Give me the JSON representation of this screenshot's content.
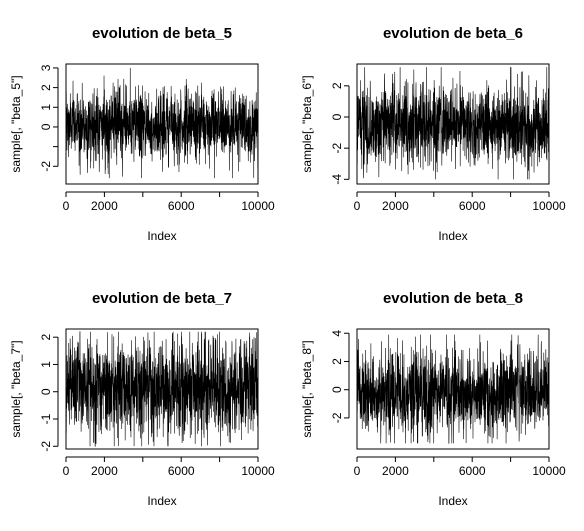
{
  "chart_data": [
    {
      "type": "line",
      "title": "evolution de beta_5",
      "xlabel": "Index",
      "ylabel": "sample[, \"beta_5\"]",
      "xlim": [
        0,
        10000
      ],
      "ylim": [
        -2.9,
        3.2
      ],
      "x_ticks": [
        0,
        2000,
        6000,
        10000
      ],
      "x_tick_labels": [
        "0",
        "2000",
        "6000",
        "10000"
      ],
      "x_minor_ticks": [
        4000,
        8000
      ],
      "y_ticks": [
        -2,
        0,
        1,
        2,
        3
      ],
      "y_tick_labels": [
        "-2",
        "0",
        "1",
        "2",
        "3"
      ],
      "y_minor_ticks": [
        -1
      ],
      "series": [
        {
          "n": 10000,
          "center": 0.1,
          "min": -2.6,
          "max": 3.0,
          "band_low": -0.9,
          "band_high": 1.3
        }
      ],
      "grid": false
    },
    {
      "type": "line",
      "title": "evolution de beta_6",
      "xlabel": "Index",
      "ylabel": "sample[, \"beta_6\"]",
      "xlim": [
        0,
        10000
      ],
      "ylim": [
        -4.3,
        3.4
      ],
      "x_ticks": [
        0,
        2000,
        6000,
        10000
      ],
      "x_tick_labels": [
        "0",
        "2000",
        "6000",
        "10000"
      ],
      "x_minor_ticks": [
        4000,
        8000
      ],
      "y_ticks": [
        -4,
        -2,
        0,
        2
      ],
      "y_tick_labels": [
        "-4",
        "-2",
        "0",
        "2"
      ],
      "y_minor_ticks": [],
      "series": [
        {
          "n": 10000,
          "center": -0.5,
          "min": -4.0,
          "max": 3.2,
          "band_low": -2.0,
          "band_high": 1.2
        }
      ],
      "grid": false
    },
    {
      "type": "line",
      "title": "evolution de beta_7",
      "xlabel": "Index",
      "ylabel": "sample[, \"beta_7\"]",
      "xlim": [
        0,
        10000
      ],
      "ylim": [
        -2.1,
        2.3
      ],
      "x_ticks": [
        0,
        2000,
        6000,
        10000
      ],
      "x_tick_labels": [
        "0",
        "2000",
        "6000",
        "10000"
      ],
      "x_minor_ticks": [
        4000,
        8000
      ],
      "y_ticks": [
        -2,
        -1,
        0,
        1,
        2
      ],
      "y_tick_labels": [
        "-2",
        "-1",
        "0",
        "1",
        "2"
      ],
      "y_minor_ticks": [],
      "series": [
        {
          "n": 10000,
          "center": 0.1,
          "min": -2.0,
          "max": 2.2,
          "band_low": -0.9,
          "band_high": 1.3
        }
      ],
      "grid": false
    },
    {
      "type": "line",
      "title": "evolution de beta_8",
      "xlabel": "Index",
      "ylabel": "sample[, \"beta_8\"]",
      "xlim": [
        0,
        10000
      ],
      "ylim": [
        -4.2,
        4.3
      ],
      "x_ticks": [
        0,
        2000,
        6000,
        10000
      ],
      "x_tick_labels": [
        "0",
        "2000",
        "6000",
        "10000"
      ],
      "x_minor_ticks": [
        4000,
        8000
      ],
      "y_ticks": [
        -2,
        0,
        2,
        4
      ],
      "y_tick_labels": [
        "-2",
        "0",
        "2",
        "4"
      ],
      "y_minor_ticks": [],
      "series": [
        {
          "n": 10000,
          "center": -0.3,
          "min": -3.8,
          "max": 3.9,
          "band_low": -2.0,
          "band_high": 1.6
        }
      ],
      "grid": false
    }
  ]
}
